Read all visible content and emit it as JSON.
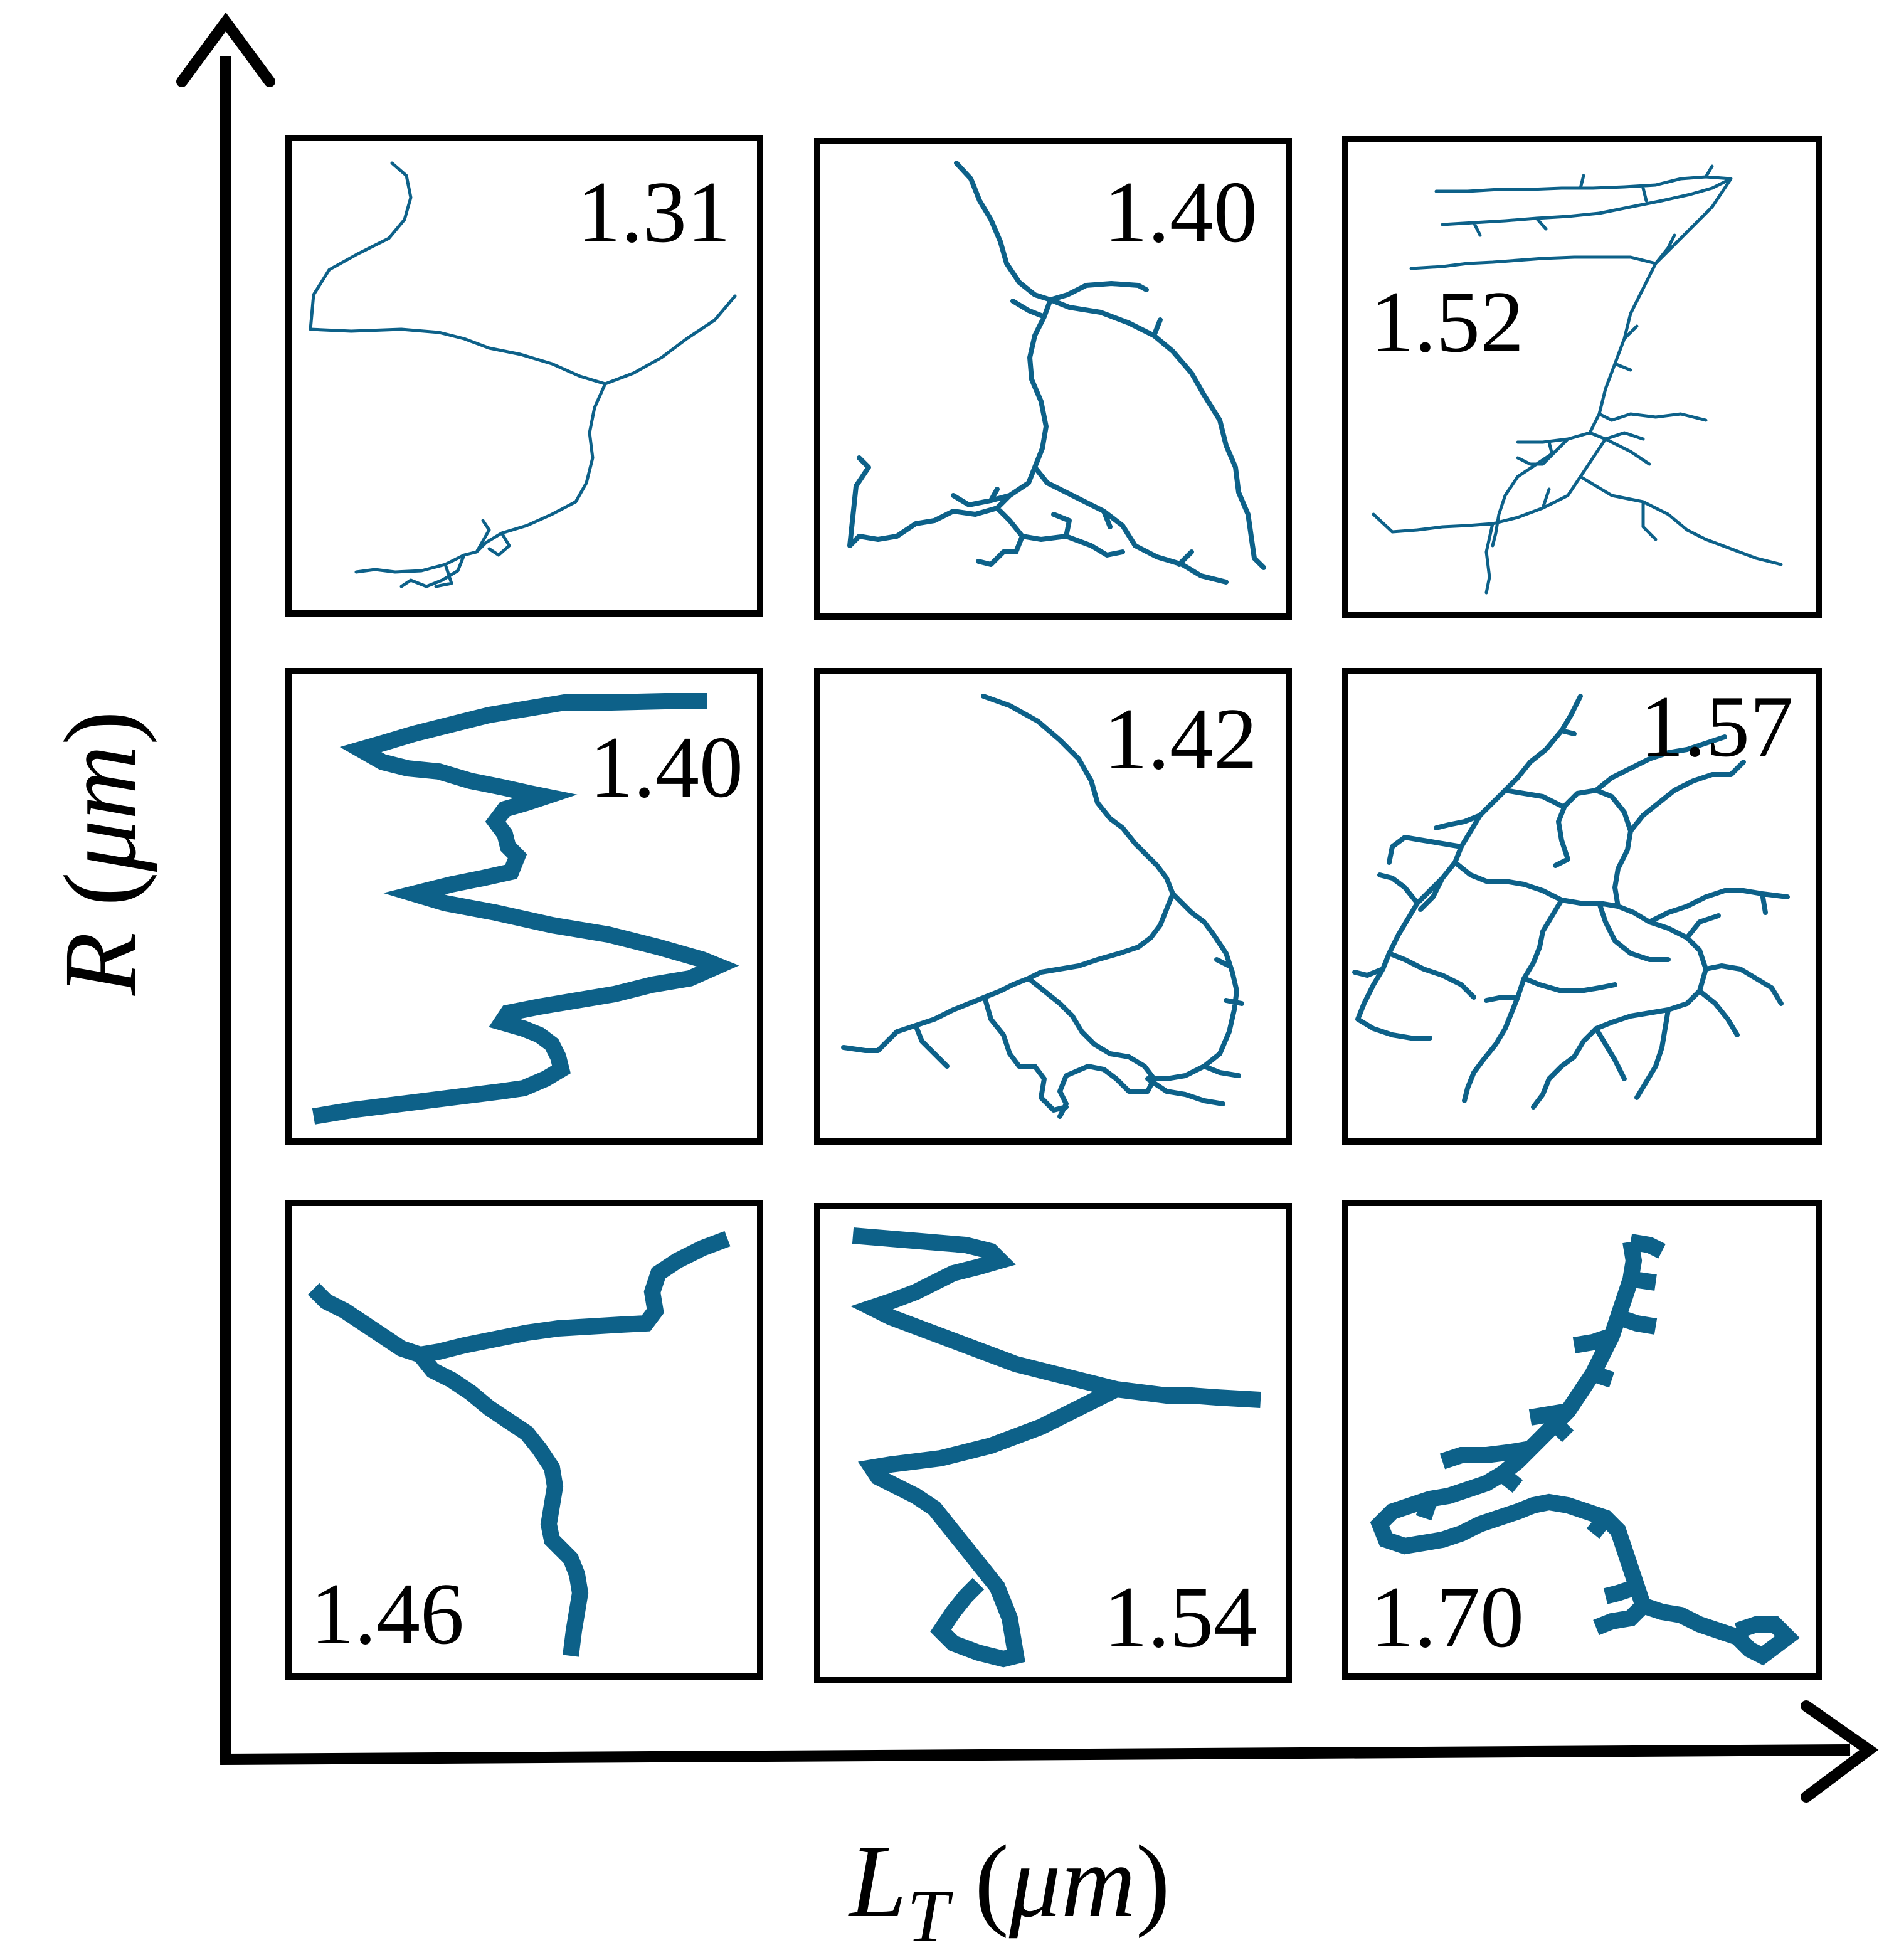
{
  "figure": {
    "trace_color": "#0d6189",
    "axis_color": "#000000",
    "y_axis_label": {
      "main": "R",
      "unit": "μm"
    },
    "x_axis_label": {
      "main": "L",
      "sub": "T",
      "unit": "μm"
    }
  },
  "panels": [
    {
      "row": 1,
      "col": 1,
      "value": "1.31"
    },
    {
      "row": 1,
      "col": 2,
      "value": "1.40"
    },
    {
      "row": 1,
      "col": 3,
      "value": "1.52"
    },
    {
      "row": 2,
      "col": 1,
      "value": "1.40"
    },
    {
      "row": 2,
      "col": 2,
      "value": "1.42"
    },
    {
      "row": 2,
      "col": 3,
      "value": "1.57"
    },
    {
      "row": 3,
      "col": 1,
      "value": "1.46"
    },
    {
      "row": 3,
      "col": 2,
      "value": "1.54"
    },
    {
      "row": 3,
      "col": 3,
      "value": "1.70"
    }
  ]
}
